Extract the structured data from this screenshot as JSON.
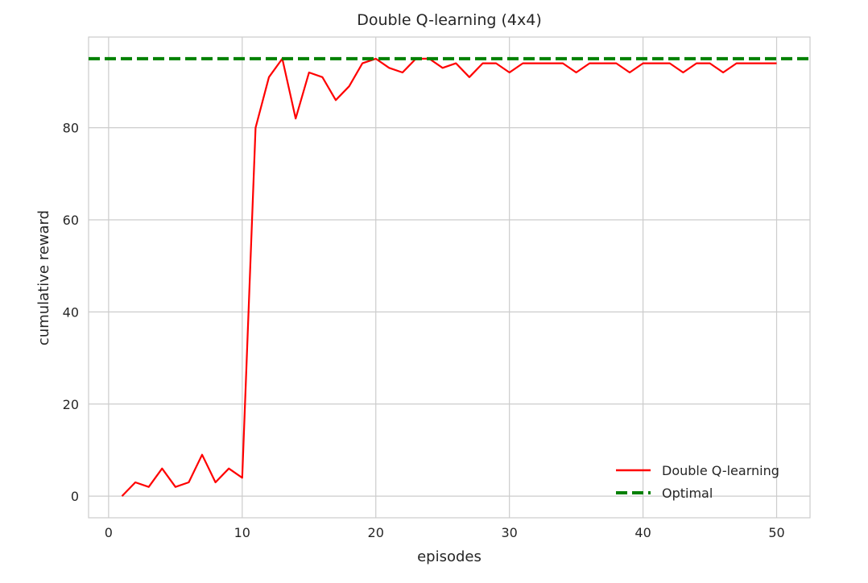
{
  "chart_data": {
    "type": "line",
    "title": "Double Q-learning (4x4)",
    "xlabel": "episodes",
    "ylabel": "cumulative reward",
    "xlim": [
      -1.5,
      52.5
    ],
    "ylim": [
      -4.7,
      99.7
    ],
    "xticks": [
      0,
      10,
      20,
      30,
      40,
      50
    ],
    "yticks": [
      0,
      20,
      40,
      60,
      80
    ],
    "grid": true,
    "legend_position": "lower-right",
    "series": [
      {
        "name": "Double Q-learning",
        "color": "#ff0000",
        "style": "solid",
        "x": [
          1,
          2,
          3,
          4,
          5,
          6,
          7,
          8,
          9,
          10,
          11,
          12,
          13,
          14,
          15,
          16,
          17,
          18,
          19,
          20,
          21,
          22,
          23,
          24,
          25,
          26,
          27,
          28,
          29,
          30,
          31,
          32,
          33,
          34,
          35,
          36,
          37,
          38,
          39,
          40,
          41,
          42,
          43,
          44,
          45,
          46,
          47,
          48,
          49,
          50
        ],
        "y": [
          0,
          3,
          2,
          6,
          2,
          3,
          9,
          3,
          6,
          4,
          80,
          91,
          95,
          82,
          92,
          91,
          86,
          89,
          94,
          95,
          93,
          92,
          95,
          95,
          93,
          94,
          91,
          94,
          94,
          92,
          94,
          94,
          94,
          94,
          92,
          94,
          94,
          94,
          92,
          94,
          94,
          94,
          92,
          94,
          94,
          92,
          94,
          94,
          94,
          94
        ]
      },
      {
        "name": "Optimal",
        "color": "#008000",
        "style": "dashed",
        "x": [
          -1.5,
          52.5
        ],
        "y": [
          95,
          95
        ]
      }
    ]
  }
}
